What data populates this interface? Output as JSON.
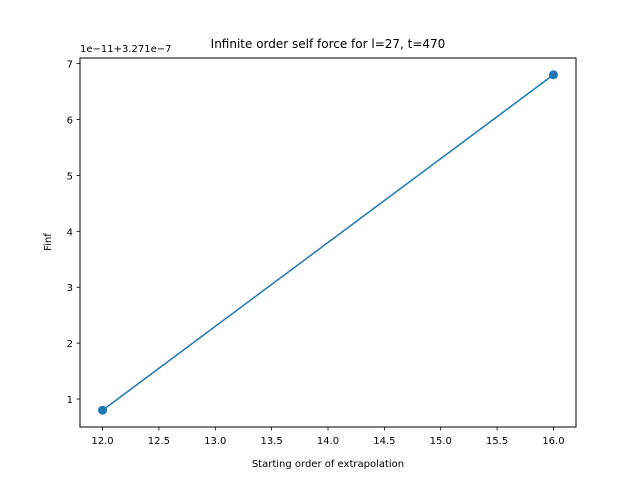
{
  "chart_data": {
    "type": "line",
    "title": "Infinite order self force for l=27, t=470",
    "xlabel": "Starting order of extrapolation",
    "ylabel": "Finf",
    "y_offset_label": "1e−11+3.271e−7",
    "x": [
      12,
      16
    ],
    "series": [
      {
        "values": [
          0.8,
          6.8
        ],
        "color": "#1f77b4",
        "marker": "circle"
      }
    ],
    "xlim": [
      11.8,
      16.2
    ],
    "ylim": [
      0.5,
      7.1
    ],
    "xticks": [
      12.0,
      12.5,
      13.0,
      13.5,
      14.0,
      14.5,
      15.0,
      15.5,
      16.0
    ],
    "xtick_labels": [
      "12.0",
      "12.5",
      "13.0",
      "13.5",
      "14.0",
      "14.5",
      "15.0",
      "15.5",
      "16.0"
    ],
    "yticks": [
      1,
      2,
      3,
      4,
      5,
      6,
      7
    ],
    "ytick_labels": [
      "1",
      "2",
      "3",
      "4",
      "5",
      "6",
      "7"
    ],
    "grid": false,
    "legend": "none"
  }
}
